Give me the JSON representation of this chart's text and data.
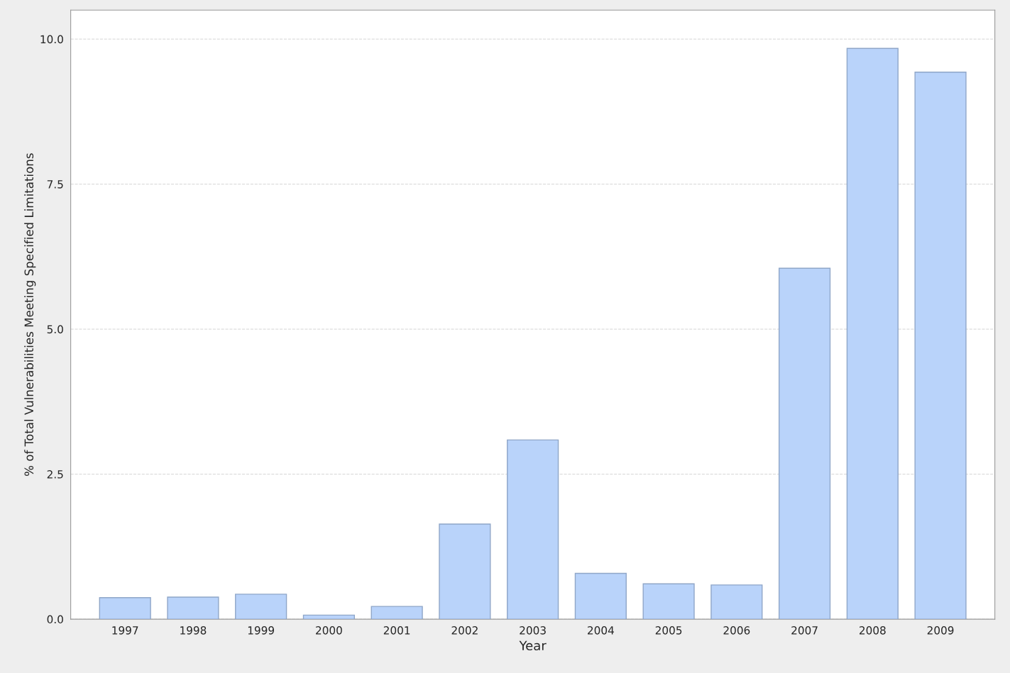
{
  "chart_data": {
    "type": "bar",
    "xlabel": "Year",
    "ylabel": "% of Total Vulnerabilities Meeting Specified Limitations",
    "categories": [
      "1997",
      "1998",
      "1999",
      "2000",
      "2001",
      "2002",
      "2003",
      "2004",
      "2005",
      "2006",
      "2007",
      "2008",
      "2009"
    ],
    "values": [
      0.37,
      0.38,
      0.43,
      0.07,
      0.22,
      1.64,
      3.09,
      0.79,
      0.61,
      0.59,
      6.05,
      9.84,
      9.43
    ],
    "color": "#b9d3fa",
    "ylim": [
      0,
      10.5
    ],
    "yticks": [
      {
        "value": 0,
        "label": "0.0"
      },
      {
        "value": 2.5,
        "label": "2.5"
      },
      {
        "value": 5,
        "label": "5.0"
      },
      {
        "value": 7.5,
        "label": "7.5"
      },
      {
        "value": 10,
        "label": "10.0"
      }
    ],
    "grid": "y"
  }
}
